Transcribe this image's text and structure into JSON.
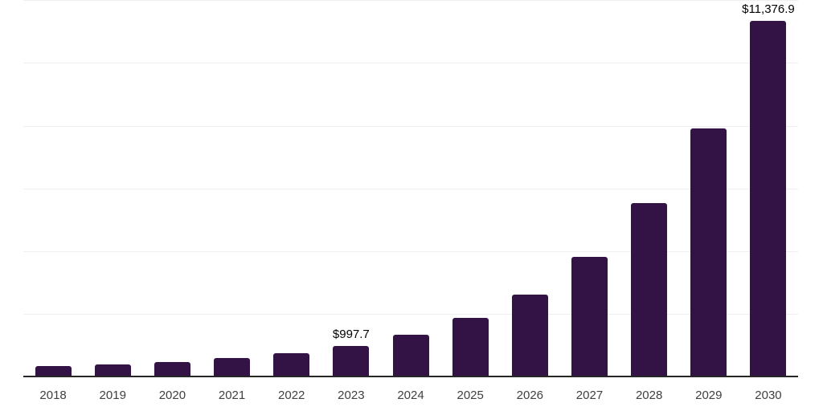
{
  "chart_data": {
    "type": "bar",
    "title": "",
    "xlabel": "",
    "ylabel": "",
    "legend": false,
    "grid": true,
    "categories": [
      "2018",
      "2019",
      "2020",
      "2021",
      "2022",
      "2023",
      "2024",
      "2025",
      "2026",
      "2027",
      "2028",
      "2029",
      "2030"
    ],
    "values": [
      350,
      420,
      490,
      620,
      780,
      997.7,
      1350,
      1890,
      2650,
      3840,
      5550,
      7930,
      11376.9
    ],
    "labeled_values": {
      "2023": 997.7,
      "2030": 11376.9
    },
    "value_labels": {
      "2023": "$997.7",
      "2030": "$11,376.9"
    },
    "ylim": [
      0,
      12000
    ],
    "gridline_step": 2000,
    "note_values_estimated": "unlabeled bar values estimated from gridlines"
  },
  "colors": {
    "bar": "#331245",
    "gridline": "#efefef",
    "axis_line": "#262626",
    "year_label": "#404040",
    "value_label": "#000000",
    "background": "#ffffff"
  }
}
